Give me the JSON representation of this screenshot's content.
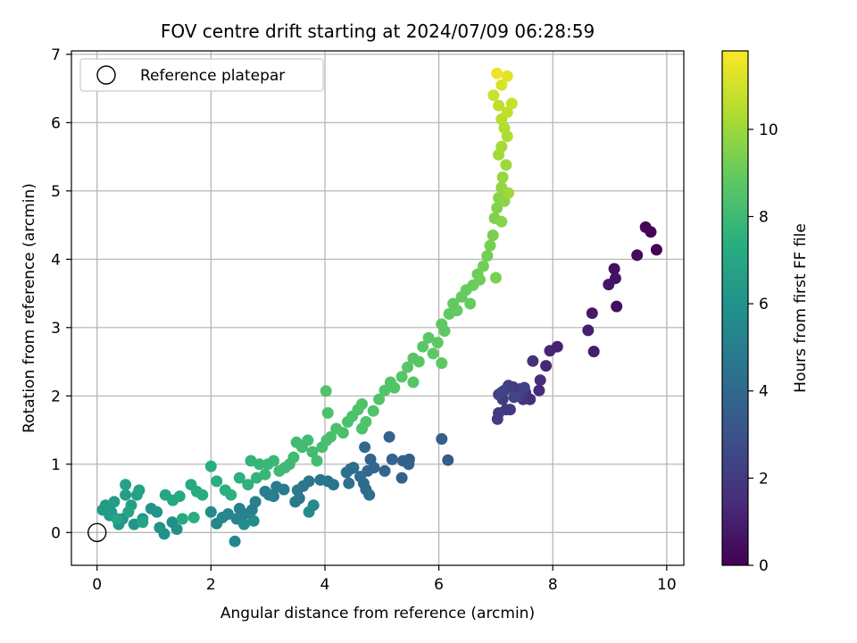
{
  "chart_data": {
    "type": "scatter",
    "title": "FOV centre drift starting at 2024/07/09 06:28:59",
    "xlabel": "Angular distance from reference (arcmin)",
    "ylabel": "Rotation from reference (arcmin)",
    "xlim": [
      -0.45,
      10.3
    ],
    "ylim": [
      -0.48,
      7.05
    ],
    "xticks": [
      0,
      2,
      4,
      6,
      8,
      10
    ],
    "yticks": [
      0,
      1,
      2,
      3,
      4,
      5,
      6,
      7
    ],
    "grid": true,
    "legend": {
      "placement": "upper-left",
      "entries": [
        "Reference platepar"
      ]
    },
    "reference_point": {
      "x": 0,
      "y": 0,
      "label": "Reference platepar",
      "marker": "open-circle"
    },
    "colorbar": {
      "label": "Hours from first FF file",
      "colormap": "viridis",
      "range": [
        0,
        11.8
      ],
      "ticks": [
        0,
        2,
        4,
        6,
        8,
        10
      ]
    },
    "points": [
      [
        9.82,
        4.14,
        0.05
      ],
      [
        9.72,
        4.4,
        0.12
      ],
      [
        9.63,
        4.47,
        0.2
      ],
      [
        9.48,
        4.06,
        0.3
      ],
      [
        9.12,
        3.31,
        0.4
      ],
      [
        9.08,
        3.86,
        0.5
      ],
      [
        9.1,
        3.72,
        0.6
      ],
      [
        8.98,
        3.63,
        0.7
      ],
      [
        8.69,
        3.21,
        0.8
      ],
      [
        8.72,
        2.65,
        0.9
      ],
      [
        8.62,
        2.96,
        1.0
      ],
      [
        8.08,
        2.72,
        1.1
      ],
      [
        7.95,
        2.66,
        1.2
      ],
      [
        7.88,
        2.44,
        1.3
      ],
      [
        7.76,
        2.08,
        1.4
      ],
      [
        7.78,
        2.23,
        1.5
      ],
      [
        7.65,
        2.51,
        1.55
      ],
      [
        7.6,
        1.95,
        1.6
      ],
      [
        7.52,
        2.05,
        1.65
      ],
      [
        7.48,
        1.95,
        1.7
      ],
      [
        7.42,
        2.1,
        1.75
      ],
      [
        7.35,
        2.05,
        1.8
      ],
      [
        7.3,
        2.13,
        1.85
      ],
      [
        7.25,
        1.8,
        1.9
      ],
      [
        7.18,
        1.8,
        1.95
      ],
      [
        7.12,
        1.95,
        2.0
      ],
      [
        7.05,
        1.75,
        2.05
      ],
      [
        7.03,
        1.66,
        2.1
      ],
      [
        7.1,
        2.05,
        2.15
      ],
      [
        7.22,
        2.15,
        2.2
      ],
      [
        7.4,
        2.0,
        2.25
      ],
      [
        7.15,
        2.08,
        2.3
      ],
      [
        7.05,
        2.02,
        2.35
      ],
      [
        7.5,
        2.12,
        2.4
      ],
      [
        7.32,
        1.98,
        2.45
      ],
      [
        6.16,
        1.06,
        3.4
      ],
      [
        6.05,
        1.37,
        3.45
      ],
      [
        5.48,
        1.07,
        3.5
      ],
      [
        5.47,
        1.0,
        3.55
      ],
      [
        5.37,
        1.05,
        3.6
      ],
      [
        5.35,
        0.8,
        3.65
      ],
      [
        5.18,
        1.07,
        3.7
      ],
      [
        5.13,
        1.4,
        3.75
      ],
      [
        5.05,
        0.9,
        3.8
      ],
      [
        4.86,
        0.95,
        3.85
      ],
      [
        4.8,
        1.07,
        3.9
      ],
      [
        4.75,
        0.9,
        3.95
      ],
      [
        4.7,
        1.25,
        4.0
      ],
      [
        4.72,
        0.63,
        4.05
      ],
      [
        4.68,
        0.72,
        4.1
      ],
      [
        4.78,
        0.55,
        4.15
      ],
      [
        4.62,
        0.82,
        4.2
      ],
      [
        4.5,
        0.95,
        4.25
      ],
      [
        4.45,
        0.93,
        4.3
      ],
      [
        4.38,
        0.88,
        4.35
      ],
      [
        4.42,
        0.72,
        4.4
      ],
      [
        4.15,
        0.7,
        4.45
      ],
      [
        4.05,
        0.75,
        4.5
      ],
      [
        3.92,
        0.77,
        4.55
      ],
      [
        3.72,
        0.75,
        4.6
      ],
      [
        3.62,
        0.68,
        4.65
      ],
      [
        3.55,
        0.5,
        4.7
      ],
      [
        3.52,
        0.62,
        4.75
      ],
      [
        3.48,
        0.45,
        4.8
      ],
      [
        3.28,
        0.63,
        4.85
      ],
      [
        3.15,
        0.67,
        4.9
      ],
      [
        3.1,
        0.53,
        4.95
      ],
      [
        3.02,
        0.55,
        5.0
      ],
      [
        2.95,
        0.6,
        5.05
      ],
      [
        2.78,
        0.45,
        5.1
      ],
      [
        2.72,
        0.33,
        5.15
      ],
      [
        2.6,
        0.27,
        5.2
      ],
      [
        2.5,
        0.35,
        5.25
      ],
      [
        2.45,
        0.2,
        5.3
      ],
      [
        2.42,
        -0.13,
        5.35
      ],
      [
        2.3,
        0.27,
        5.4
      ],
      [
        2.2,
        0.22,
        5.45
      ],
      [
        2.1,
        0.13,
        5.5
      ],
      [
        2.0,
        0.3,
        5.55
      ],
      [
        3.8,
        0.4,
        5.6
      ],
      [
        3.72,
        0.3,
        5.65
      ],
      [
        2.58,
        0.12,
        5.7
      ],
      [
        2.75,
        0.17,
        5.75
      ],
      [
        1.4,
        0.05,
        5.8
      ],
      [
        1.32,
        0.15,
        5.85
      ],
      [
        1.18,
        -0.02,
        5.9
      ],
      [
        1.1,
        0.07,
        5.95
      ],
      [
        1.05,
        0.3,
        6.0
      ],
      [
        0.95,
        0.35,
        6.05
      ],
      [
        0.8,
        0.2,
        6.1
      ],
      [
        0.65,
        0.12,
        6.15
      ],
      [
        0.45,
        0.2,
        6.2
      ],
      [
        0.38,
        0.12,
        6.25
      ],
      [
        0.25,
        0.3,
        6.3
      ],
      [
        0.15,
        0.4,
        6.35
      ],
      [
        0.1,
        0.33,
        6.4
      ],
      [
        0.22,
        0.25,
        6.45
      ],
      [
        0.3,
        0.45,
        6.5
      ],
      [
        0.5,
        0.55,
        6.55
      ],
      [
        0.6,
        0.4,
        6.6
      ],
      [
        0.7,
        0.55,
        6.65
      ],
      [
        0.74,
        0.62,
        6.7
      ],
      [
        0.5,
        0.7,
        6.75
      ],
      [
        0.55,
        0.3,
        6.8
      ],
      [
        0.35,
        0.2,
        6.85
      ],
      [
        0.8,
        0.15,
        6.9
      ],
      [
        1.2,
        0.55,
        6.95
      ],
      [
        1.33,
        0.47,
        7.0
      ],
      [
        1.45,
        0.53,
        7.05
      ],
      [
        1.5,
        0.2,
        7.1
      ],
      [
        1.65,
        0.7,
        7.15
      ],
      [
        1.75,
        0.6,
        7.2
      ],
      [
        1.85,
        0.55,
        7.25
      ],
      [
        1.7,
        0.22,
        7.3
      ],
      [
        2.0,
        0.97,
        7.35
      ],
      [
        2.1,
        0.75,
        7.4
      ],
      [
        2.25,
        0.62,
        7.45
      ],
      [
        2.35,
        0.55,
        7.5
      ],
      [
        2.5,
        0.8,
        7.55
      ],
      [
        2.65,
        0.7,
        7.6
      ],
      [
        2.7,
        1.05,
        7.65
      ],
      [
        2.8,
        0.8,
        7.7
      ],
      [
        2.85,
        1.0,
        7.75
      ],
      [
        2.95,
        0.85,
        7.8
      ],
      [
        3.0,
        1.0,
        7.85
      ],
      [
        3.1,
        1.05,
        7.9
      ],
      [
        3.2,
        0.9,
        7.95
      ],
      [
        3.3,
        0.95,
        8.0
      ],
      [
        3.38,
        1.0,
        8.02
      ],
      [
        3.45,
        1.1,
        8.05
      ],
      [
        3.5,
        1.32,
        8.08
      ],
      [
        3.6,
        1.25,
        8.1
      ],
      [
        3.7,
        1.35,
        8.12
      ],
      [
        3.78,
        1.18,
        8.15
      ],
      [
        3.86,
        1.05,
        8.18
      ],
      [
        3.95,
        1.25,
        8.2
      ],
      [
        4.03,
        1.35,
        8.25
      ],
      [
        4.1,
        1.4,
        8.3
      ],
      [
        4.2,
        1.52,
        8.32
      ],
      [
        4.32,
        1.46,
        8.35
      ],
      [
        4.4,
        1.62,
        8.38
      ],
      [
        4.48,
        1.7,
        8.4
      ],
      [
        4.58,
        1.8,
        8.42
      ],
      [
        4.65,
        1.88,
        8.45
      ],
      [
        4.72,
        1.62,
        8.48
      ],
      [
        4.85,
        1.78,
        8.5
      ],
      [
        4.95,
        1.95,
        8.52
      ],
      [
        5.05,
        2.08,
        8.55
      ],
      [
        5.15,
        2.2,
        8.58
      ],
      [
        5.22,
        2.12,
        8.6
      ],
      [
        5.35,
        2.28,
        8.62
      ],
      [
        5.45,
        2.42,
        8.65
      ],
      [
        5.55,
        2.55,
        8.68
      ],
      [
        5.65,
        2.5,
        8.7
      ],
      [
        5.72,
        2.72,
        8.72
      ],
      [
        5.82,
        2.85,
        8.75
      ],
      [
        5.9,
        2.62,
        8.78
      ],
      [
        5.98,
        2.78,
        8.8
      ],
      [
        6.05,
        3.05,
        8.82
      ],
      [
        6.1,
        2.95,
        8.85
      ],
      [
        6.18,
        3.2,
        8.88
      ],
      [
        6.25,
        3.35,
        8.9
      ],
      [
        6.32,
        3.25,
        8.92
      ],
      [
        6.4,
        3.45,
        8.95
      ],
      [
        6.48,
        3.55,
        8.98
      ],
      [
        6.55,
        3.35,
        9.0
      ],
      [
        6.6,
        3.62,
        9.05
      ],
      [
        6.68,
        3.78,
        9.1
      ],
      [
        6.72,
        3.7,
        9.15
      ],
      [
        6.78,
        3.9,
        9.2
      ],
      [
        6.85,
        4.05,
        9.25
      ],
      [
        6.9,
        4.2,
        9.3
      ],
      [
        6.95,
        4.35,
        9.35
      ],
      [
        7.0,
        3.73,
        9.4
      ],
      [
        6.98,
        4.6,
        9.45
      ],
      [
        7.02,
        4.75,
        9.5
      ],
      [
        7.05,
        4.9,
        9.6
      ],
      [
        7.1,
        4.55,
        9.65
      ],
      [
        7.15,
        4.85,
        9.7
      ],
      [
        7.1,
        5.05,
        9.8
      ],
      [
        7.12,
        5.2,
        9.9
      ],
      [
        7.18,
        5.38,
        10.0
      ],
      [
        7.22,
        4.97,
        10.05
      ],
      [
        7.05,
        5.53,
        10.1
      ],
      [
        7.1,
        5.65,
        10.2
      ],
      [
        7.2,
        5.8,
        10.3
      ],
      [
        7.15,
        5.92,
        10.4
      ],
      [
        7.1,
        6.05,
        10.5
      ],
      [
        7.05,
        6.25,
        10.6
      ],
      [
        7.2,
        6.15,
        10.7
      ],
      [
        7.28,
        6.28,
        10.8
      ],
      [
        6.96,
        6.4,
        10.9
      ],
      [
        7.1,
        6.55,
        11.1
      ],
      [
        7.2,
        6.68,
        11.3
      ],
      [
        7.02,
        6.72,
        11.5
      ],
      [
        4.05,
        1.75,
        8.4
      ],
      [
        4.02,
        2.07,
        8.45
      ],
      [
        4.65,
        1.52,
        8.4
      ],
      [
        5.55,
        2.2,
        8.6
      ],
      [
        6.05,
        2.48,
        8.8
      ]
    ]
  }
}
